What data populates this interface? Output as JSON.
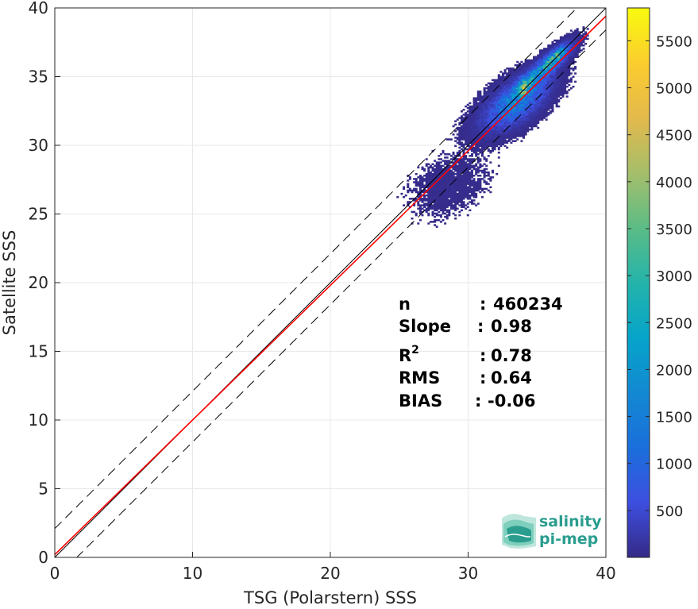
{
  "chart_data": {
    "type": "heatmap",
    "xlabel": "TSG (Polarstern) SSS",
    "ylabel": "Satellite SSS",
    "xlim": [
      0,
      40
    ],
    "ylim": [
      0,
      40
    ],
    "xticks": [
      0,
      10,
      20,
      30,
      40
    ],
    "yticks": [
      0,
      5,
      10,
      15,
      20,
      25,
      30,
      35,
      40
    ],
    "grid": true,
    "colormap": "parula",
    "colorbar": {
      "range": [
        0,
        5850
      ],
      "ticks": [
        500,
        1000,
        1500,
        2000,
        2500,
        3000,
        3500,
        4000,
        4500,
        5000,
        5500
      ]
    },
    "lines": [
      {
        "name": "identity",
        "slope": 1,
        "intercept": 0,
        "color": "#000000",
        "style": "solid"
      },
      {
        "name": "regression",
        "slope": 0.98,
        "intercept": 0.2,
        "color": "#ff0000",
        "style": "solid"
      },
      {
        "name": "upper bound",
        "slope": 1,
        "intercept": 2.1,
        "color": "#000000",
        "style": "dashed"
      },
      {
        "name": "lower bound",
        "slope": 1,
        "intercept": -1.6,
        "color": "#000000",
        "style": "dashed"
      }
    ],
    "density_clusters": [
      {
        "x": 33.5,
        "y": 33.2,
        "sx": 1.3,
        "sy": 1.1,
        "rho": 0.6,
        "peak": 1500
      },
      {
        "x": 34.0,
        "y": 34.2,
        "sx": 0.35,
        "sy": 0.45,
        "rho": 0.5,
        "peak": 2600
      },
      {
        "x": 35.5,
        "y": 35.6,
        "sx": 1.0,
        "sy": 0.9,
        "rho": 0.85,
        "peak": 1800
      },
      {
        "x": 36.3,
        "y": 36.4,
        "sx": 0.5,
        "sy": 0.5,
        "rho": 0.8,
        "peak": 1900
      },
      {
        "x": 32.0,
        "y": 31.8,
        "sx": 1.3,
        "sy": 1.0,
        "rho": 0.5,
        "peak": 120
      },
      {
        "x": 28.5,
        "y": 27.0,
        "sx": 1.6,
        "sy": 1.3,
        "rho": 0.3,
        "peak": 60
      }
    ]
  },
  "stats": [
    {
      "label": "n",
      "sep": ":",
      "value": "460234"
    },
    {
      "label": "Slope",
      "sep": ":",
      "value": "0.98"
    },
    {
      "label": "R",
      "sup": "2",
      "sep": ":",
      "value": "0.78"
    },
    {
      "label": "RMS",
      "sep": ":",
      "value": "0.64"
    },
    {
      "label": "BIAS",
      "sep": ":",
      "value": "-0.06"
    }
  ],
  "logo": {
    "line1": "salinity",
    "line2": "pi-mep",
    "color": "#2a9d8f"
  }
}
